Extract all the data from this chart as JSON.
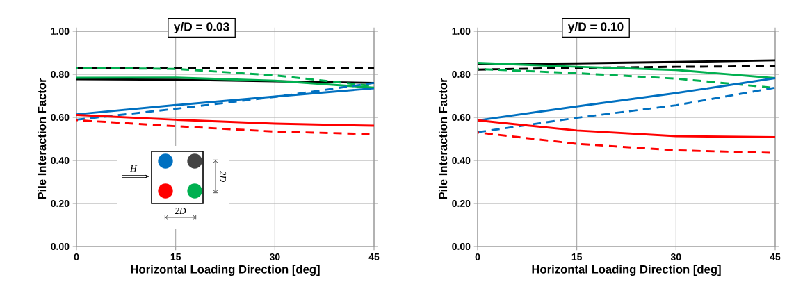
{
  "chart_data": [
    {
      "type": "line",
      "title": "y/D = 0.03",
      "xlabel": "Horizontal Loading Direction [deg]",
      "ylabel": "Pile Interaction Factor",
      "x": [
        0,
        15,
        30,
        45
      ],
      "xlim": [
        0,
        45
      ],
      "xticks": [
        0,
        15,
        30,
        45
      ],
      "ylim": [
        0,
        1
      ],
      "yticks": [
        {
          "value": 0,
          "label": "0.00"
        },
        {
          "value": 0.2,
          "label": "0.20"
        },
        {
          "value": 0.4,
          "label": "0.40"
        },
        {
          "value": 0.6,
          "label": "0.60"
        },
        {
          "value": 0.8,
          "label": "0.80"
        },
        {
          "value": 1,
          "label": "1.00"
        }
      ],
      "grid": true,
      "annotations": [
        "H",
        "2D",
        "2D"
      ],
      "series": [
        {
          "color": "#000000",
          "line_style": "dashed",
          "values": [
            0.83,
            0.83,
            0.83,
            0.83
          ]
        },
        {
          "color": "#000000",
          "line_style": "solid",
          "values": [
            0.777,
            0.775,
            0.768,
            0.76
          ]
        },
        {
          "color": "#00b050",
          "line_style": "dashed",
          "values": [
            0.83,
            0.825,
            0.795,
            0.745
          ]
        },
        {
          "color": "#00b050",
          "line_style": "solid",
          "values": [
            0.784,
            0.785,
            0.77,
            0.738
          ]
        },
        {
          "color": "#0070c0",
          "line_style": "dashed",
          "values": [
            0.589,
            0.64,
            0.695,
            0.76
          ]
        },
        {
          "color": "#0070c0",
          "line_style": "solid",
          "values": [
            0.614,
            0.657,
            0.697,
            0.735
          ]
        },
        {
          "color": "#ff0000",
          "line_style": "dashed",
          "values": [
            0.587,
            0.559,
            0.534,
            0.522
          ]
        },
        {
          "color": "#ff0000",
          "line_style": "solid",
          "values": [
            0.611,
            0.589,
            0.571,
            0.561
          ]
        }
      ]
    },
    {
      "type": "line",
      "title": "y/D = 0.10",
      "xlabel": "Horizontal Loading Direction [deg]",
      "ylabel": "Pile Interaction Factor",
      "x": [
        0,
        15,
        30,
        45
      ],
      "xlim": [
        0,
        45
      ],
      "xticks": [
        0,
        15,
        30,
        45
      ],
      "ylim": [
        0,
        1
      ],
      "yticks": [
        {
          "value": 0,
          "label": "0.00"
        },
        {
          "value": 0.2,
          "label": "0.20"
        },
        {
          "value": 0.4,
          "label": "0.40"
        },
        {
          "value": 0.6,
          "label": "0.60"
        },
        {
          "value": 0.8,
          "label": "0.80"
        },
        {
          "value": 1,
          "label": "1.00"
        }
      ],
      "grid": true,
      "series": [
        {
          "color": "#000000",
          "line_style": "dashed",
          "values": [
            0.822,
            0.83,
            0.835,
            0.838
          ]
        },
        {
          "color": "#000000",
          "line_style": "solid",
          "values": [
            0.847,
            0.851,
            0.857,
            0.865
          ]
        },
        {
          "color": "#00b050",
          "line_style": "dashed",
          "values": [
            0.825,
            0.805,
            0.78,
            0.737
          ]
        },
        {
          "color": "#00b050",
          "line_style": "solid",
          "values": [
            0.853,
            0.835,
            0.82,
            0.782
          ]
        },
        {
          "color": "#0070c0",
          "line_style": "dashed",
          "values": [
            0.531,
            0.598,
            0.656,
            0.738
          ]
        },
        {
          "color": "#0070c0",
          "line_style": "solid",
          "values": [
            0.586,
            0.651,
            0.713,
            0.782
          ]
        },
        {
          "color": "#ff0000",
          "line_style": "dashed",
          "values": [
            0.53,
            0.477,
            0.447,
            0.435
          ]
        },
        {
          "color": "#ff0000",
          "line_style": "solid",
          "values": [
            0.586,
            0.539,
            0.513,
            0.508
          ]
        }
      ]
    }
  ]
}
